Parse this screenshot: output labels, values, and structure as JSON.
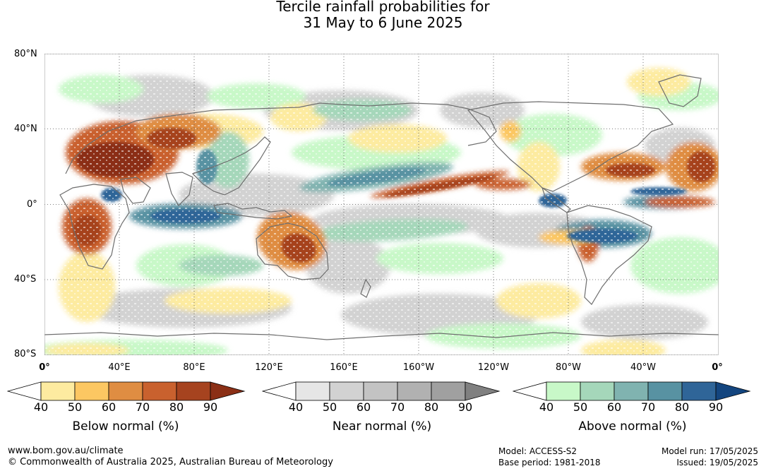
{
  "title": {
    "line1": "Tercile rainfall probabilities for",
    "line2": "31 May to 6 June 2025"
  },
  "map": {
    "latitude_labels": [
      "80°N",
      "40°N",
      "0°",
      "40°S",
      "80°S"
    ],
    "longitude_labels": [
      "0°",
      "40°E",
      "80°E",
      "120°E",
      "160°E",
      "160°W",
      "120°W",
      "80°W",
      "40°W",
      "0°"
    ],
    "grid": true,
    "legend_colors": {
      "below": [
        "#fdeba0",
        "#fcc762",
        "#df8d42",
        "#c9612e",
        "#a6431f",
        "#8b2f16"
      ],
      "near": [
        "#e6e6e6",
        "#d2d2d2",
        "#c3c3c3",
        "#b1b1b1",
        "#a0a0a0",
        "#808080"
      ],
      "above": [
        "#c8f8c8",
        "#a5d7ba",
        "#80b3b0",
        "#5892a2",
        "#2f6598",
        "#13457f"
      ]
    }
  },
  "colorbars": [
    {
      "name": "below",
      "title": "Below normal (%)",
      "ticks": [
        "40",
        "50",
        "60",
        "70",
        "80",
        "90"
      ]
    },
    {
      "name": "near",
      "title": "Near normal (%)",
      "ticks": [
        "40",
        "50",
        "60",
        "70",
        "80",
        "90"
      ]
    },
    {
      "name": "above",
      "title": "Above normal (%)",
      "ticks": [
        "40",
        "50",
        "60",
        "70",
        "80",
        "90"
      ]
    }
  ],
  "footer": {
    "website": "www.bom.gov.au/climate",
    "copyright": "© Commonwealth of Australia 2025, Australian Bureau of Meteorology",
    "model": "Model: ACCESS-S2",
    "base_period": "Base period: 1981-2018",
    "model_run": "Model run: 17/05/2025",
    "issued": "Issued: 19/05/2025"
  }
}
